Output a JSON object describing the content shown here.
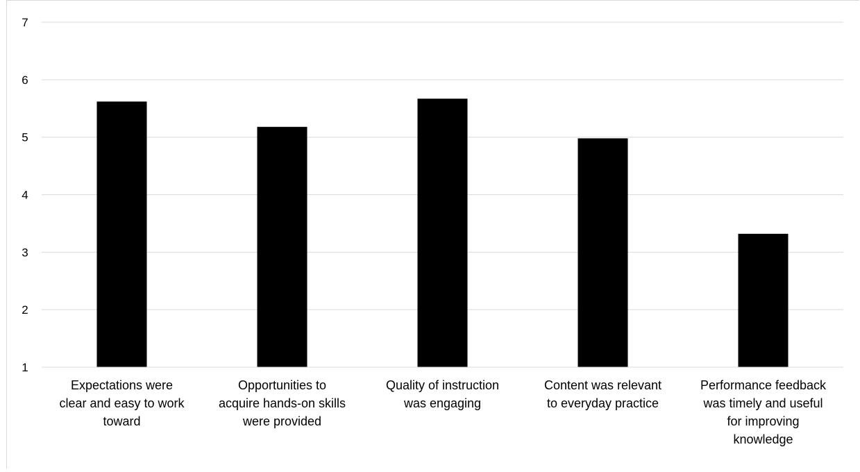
{
  "chart_data": {
    "type": "bar",
    "categories": [
      [
        "Expectations were",
        "clear and easy to work",
        "toward"
      ],
      [
        "Opportunities to",
        "acquire hands-on skills",
        "were provided"
      ],
      [
        "Quality of instruction",
        "was engaging"
      ],
      [
        "Content was relevant",
        "to everyday practice"
      ],
      [
        "Performance feedback",
        "was timely and useful",
        "for improving",
        "knowledge"
      ]
    ],
    "values": [
      5.62,
      5.18,
      5.67,
      4.98,
      3.32
    ],
    "title": "",
    "xlabel": "",
    "ylabel": "",
    "ylim": [
      1,
      7
    ],
    "yticks": [
      1,
      2,
      3,
      4,
      5,
      6,
      7
    ],
    "grid": true,
    "legend": "none",
    "bar_color": "#000000",
    "grid_color": "#d9d9d9"
  }
}
